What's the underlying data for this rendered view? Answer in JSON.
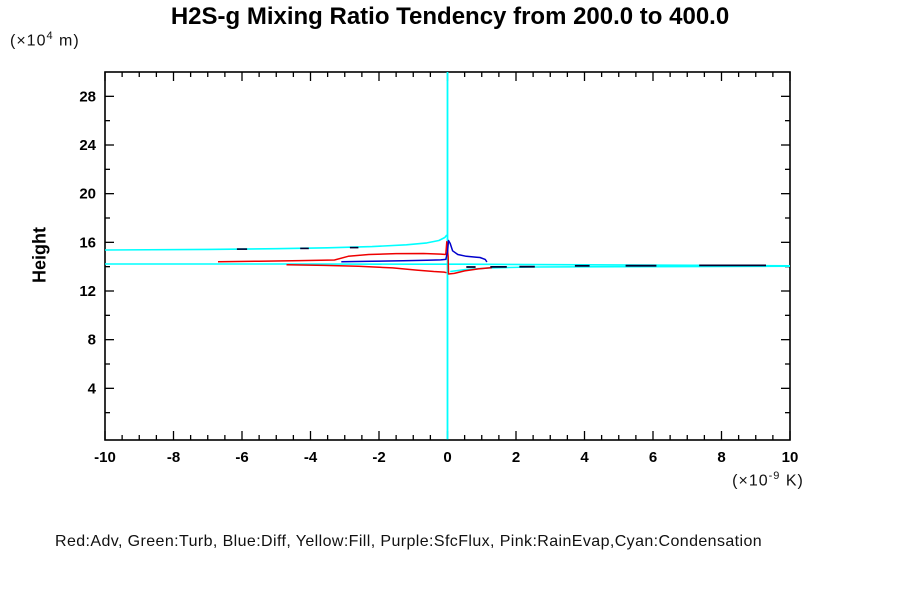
{
  "title": "H2S-g Mixing Ratio Tendency from 200.0 to 400.0",
  "y_axis": {
    "label": "Height",
    "unit_prefix": "(×10",
    "unit_exp": "4",
    "unit_suffix": " m)",
    "tick_labels": [
      "28",
      "24",
      "20",
      "16",
      "12",
      "8",
      "4"
    ],
    "tick_values": [
      28,
      24,
      20,
      16,
      12,
      8,
      4
    ],
    "minor_step": 2,
    "major_step": 4,
    "range": [
      0,
      30
    ]
  },
  "x_axis": {
    "unit_prefix": "(×10",
    "unit_exp": "-9",
    "unit_suffix": " K)",
    "tick_labels": [
      "-10",
      "-8",
      "-6",
      "-4",
      "-2",
      "0",
      "2",
      "4",
      "6",
      "8",
      "10"
    ],
    "tick_values": [
      -10,
      -8,
      -6,
      -4,
      -2,
      0,
      2,
      4,
      6,
      8,
      10
    ],
    "minor_step": 0.5,
    "major_step": 2,
    "range": [
      -10,
      10
    ]
  },
  "legend_text": "Red:Adv, Green:Turb, Blue:Diff, Yellow:Fill, Purple:SfcFlux, Pink:RainEvap,Cyan:Condensation",
  "colors": {
    "condensation": "#00ffff",
    "adv": "#ee0000",
    "diff": "#0000cd",
    "dark_dash": "#000030",
    "axis": "#000000"
  },
  "chart_data": {
    "type": "line",
    "title": "H2S-g Mixing Ratio Tendency from 200.0 to 400.0",
    "xlabel": "(x10^-9 K)",
    "ylabel": "Height (x10^4 m)",
    "xlim": [
      -10,
      10
    ],
    "ylim": [
      0,
      30
    ],
    "grid": false,
    "legend_position": "bottom-caption",
    "series": [
      {
        "name": "condensation-vertical",
        "color": "#00ffff",
        "width": 1.8,
        "points": [
          [
            0,
            30.2
          ],
          [
            0,
            -0.2
          ]
        ]
      },
      {
        "name": "condensation-upper-hook",
        "color": "#00ffff",
        "width": 1.6,
        "points": [
          [
            -10,
            15.37
          ],
          [
            -7,
            15.42
          ],
          [
            -5,
            15.48
          ],
          [
            -3.5,
            15.55
          ],
          [
            -2.2,
            15.65
          ],
          [
            -1.2,
            15.8
          ],
          [
            -0.6,
            15.95
          ],
          [
            -0.25,
            16.15
          ],
          [
            -0.08,
            16.4
          ],
          [
            -0.02,
            16.6
          ]
        ]
      },
      {
        "name": "condensation-lower-long",
        "color": "#00ffff",
        "width": 1.6,
        "points": [
          [
            -10,
            14.22
          ],
          [
            -4,
            14.22
          ],
          [
            -1,
            14.2
          ],
          [
            0.5,
            14.2
          ],
          [
            4,
            14.15
          ],
          [
            8,
            14.1
          ],
          [
            10,
            14.07
          ]
        ]
      },
      {
        "name": "condensation-lower-right",
        "color": "#00ffff",
        "width": 1.6,
        "points": [
          [
            0.08,
            13.6
          ],
          [
            0.5,
            13.75
          ],
          [
            1.2,
            13.9
          ],
          [
            2.5,
            13.97
          ],
          [
            5,
            14.0
          ],
          [
            8,
            14.02
          ],
          [
            10,
            14.04
          ]
        ]
      },
      {
        "name": "adv-upper-spike",
        "color": "#ee0000",
        "width": 1.5,
        "points": [
          [
            -6.7,
            14.4
          ],
          [
            -5.5,
            14.45
          ],
          [
            -4.3,
            14.5
          ],
          [
            -3.3,
            14.55
          ],
          [
            -2.9,
            14.85
          ],
          [
            -2.3,
            15.0
          ],
          [
            -1.5,
            15.07
          ],
          [
            -0.7,
            15.08
          ],
          [
            -0.2,
            15.03
          ],
          [
            -0.05,
            15.0
          ],
          [
            -0.02,
            16.05
          ],
          [
            0.02,
            14.8
          ],
          [
            0.03,
            13.4
          ],
          [
            0.2,
            13.45
          ],
          [
            0.5,
            13.65
          ],
          [
            0.9,
            13.82
          ],
          [
            1.3,
            13.92
          ]
        ]
      },
      {
        "name": "adv-lower-branch",
        "color": "#ee0000",
        "width": 1.5,
        "points": [
          [
            -4.7,
            14.16
          ],
          [
            -3.6,
            14.1
          ],
          [
            -2.6,
            14.03
          ],
          [
            -1.6,
            13.9
          ],
          [
            -0.9,
            13.72
          ],
          [
            -0.4,
            13.6
          ],
          [
            -0.1,
            13.55
          ],
          [
            -0.03,
            13.5
          ]
        ]
      },
      {
        "name": "diff-spike",
        "color": "#0000cd",
        "width": 1.5,
        "points": [
          [
            -3.1,
            14.4
          ],
          [
            -2.2,
            14.44
          ],
          [
            -1.3,
            14.48
          ],
          [
            -0.6,
            14.52
          ],
          [
            -0.2,
            14.56
          ],
          [
            -0.05,
            14.6
          ],
          [
            0.0,
            15.2
          ],
          [
            0.03,
            16.15
          ],
          [
            0.08,
            15.9
          ],
          [
            0.15,
            15.3
          ],
          [
            0.3,
            15.0
          ],
          [
            0.55,
            14.85
          ],
          [
            0.85,
            14.78
          ],
          [
            0.95,
            14.75
          ],
          [
            1.1,
            14.6
          ],
          [
            1.15,
            14.38
          ]
        ]
      }
    ],
    "dash_series": [
      {
        "name": "dark-dashes-left",
        "color": "#000030",
        "width": 1.6,
        "segments": [
          [
            [
              -6.15,
              15.44
            ],
            [
              -5.85,
              15.44
            ]
          ],
          [
            [
              -4.3,
              15.5
            ],
            [
              -4.05,
              15.5
            ]
          ],
          [
            [
              -2.85,
              15.57
            ],
            [
              -2.6,
              15.57
            ]
          ]
        ]
      },
      {
        "name": "dark-dashes-right",
        "color": "#000030",
        "width": 1.8,
        "segments": [
          [
            [
              0.55,
              13.97
            ],
            [
              0.82,
              13.97
            ]
          ],
          [
            [
              1.25,
              13.98
            ],
            [
              1.73,
              13.98
            ]
          ],
          [
            [
              2.1,
              14.0
            ],
            [
              2.55,
              14.0
            ]
          ],
          [
            [
              3.72,
              14.07
            ],
            [
              4.15,
              14.07
            ]
          ],
          [
            [
              5.2,
              14.08
            ],
            [
              6.1,
              14.08
            ]
          ],
          [
            [
              7.35,
              14.1
            ],
            [
              9.3,
              14.1
            ]
          ]
        ]
      }
    ]
  }
}
